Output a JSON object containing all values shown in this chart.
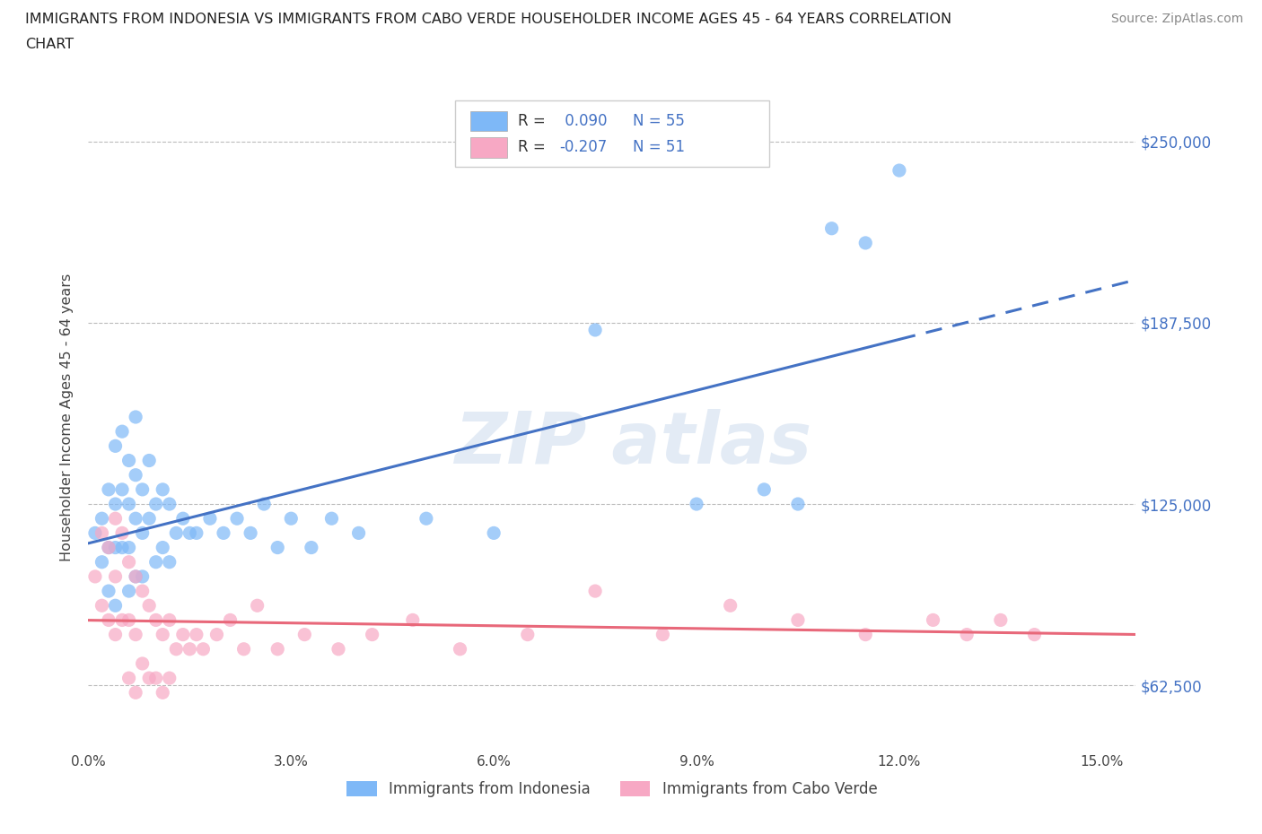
{
  "title_line1": "IMMIGRANTS FROM INDONESIA VS IMMIGRANTS FROM CABO VERDE HOUSEHOLDER INCOME AGES 45 - 64 YEARS CORRELATION",
  "title_line2": "CHART",
  "source": "Source: ZipAtlas.com",
  "ylabel": "Householder Income Ages 45 - 64 years",
  "xlim": [
    0.0,
    0.155
  ],
  "ylim": [
    40000,
    270000
  ],
  "yticks": [
    62500,
    125000,
    187500,
    250000
  ],
  "ytick_labels": [
    "$62,500",
    "$125,000",
    "$187,500",
    "$250,000"
  ],
  "xticks": [
    0.0,
    0.03,
    0.06,
    0.09,
    0.12,
    0.15
  ],
  "xtick_labels": [
    "0.0%",
    "3.0%",
    "6.0%",
    "9.0%",
    "12.0%",
    "15.0%"
  ],
  "r_indonesia": 0.09,
  "n_indonesia": 55,
  "r_cabo_verde": -0.207,
  "n_cabo_verde": 51,
  "color_indonesia": "#7EB8F7",
  "color_cabo_verde": "#F7A8C4",
  "line_color_indonesia": "#4472C4",
  "line_color_cabo_verde": "#E8687A",
  "indonesia_x": [
    0.001,
    0.002,
    0.002,
    0.003,
    0.003,
    0.003,
    0.004,
    0.004,
    0.004,
    0.004,
    0.005,
    0.005,
    0.005,
    0.006,
    0.006,
    0.006,
    0.006,
    0.007,
    0.007,
    0.007,
    0.007,
    0.008,
    0.008,
    0.008,
    0.009,
    0.009,
    0.01,
    0.01,
    0.011,
    0.011,
    0.012,
    0.012,
    0.013,
    0.014,
    0.015,
    0.016,
    0.018,
    0.02,
    0.022,
    0.024,
    0.026,
    0.028,
    0.03,
    0.033,
    0.036,
    0.04,
    0.05,
    0.06,
    0.075,
    0.09,
    0.1,
    0.105,
    0.11,
    0.115,
    0.12
  ],
  "indonesia_y": [
    115000,
    120000,
    105000,
    130000,
    110000,
    95000,
    145000,
    125000,
    110000,
    90000,
    150000,
    130000,
    110000,
    140000,
    125000,
    110000,
    95000,
    155000,
    135000,
    120000,
    100000,
    130000,
    115000,
    100000,
    140000,
    120000,
    125000,
    105000,
    130000,
    110000,
    125000,
    105000,
    115000,
    120000,
    115000,
    115000,
    120000,
    115000,
    120000,
    115000,
    125000,
    110000,
    120000,
    110000,
    120000,
    115000,
    120000,
    115000,
    185000,
    125000,
    130000,
    125000,
    220000,
    215000,
    240000
  ],
  "cabo_verde_x": [
    0.001,
    0.002,
    0.002,
    0.003,
    0.003,
    0.004,
    0.004,
    0.004,
    0.005,
    0.005,
    0.006,
    0.006,
    0.006,
    0.007,
    0.007,
    0.007,
    0.008,
    0.008,
    0.009,
    0.009,
    0.01,
    0.01,
    0.011,
    0.011,
    0.012,
    0.012,
    0.013,
    0.014,
    0.015,
    0.016,
    0.017,
    0.019,
    0.021,
    0.023,
    0.025,
    0.028,
    0.032,
    0.037,
    0.042,
    0.048,
    0.055,
    0.065,
    0.075,
    0.085,
    0.095,
    0.105,
    0.115,
    0.125,
    0.13,
    0.135,
    0.14
  ],
  "cabo_verde_y": [
    100000,
    115000,
    90000,
    110000,
    85000,
    120000,
    100000,
    80000,
    115000,
    85000,
    105000,
    85000,
    65000,
    100000,
    80000,
    60000,
    95000,
    70000,
    90000,
    65000,
    85000,
    65000,
    80000,
    60000,
    85000,
    65000,
    75000,
    80000,
    75000,
    80000,
    75000,
    80000,
    85000,
    75000,
    90000,
    75000,
    80000,
    75000,
    80000,
    85000,
    75000,
    80000,
    95000,
    80000,
    90000,
    85000,
    80000,
    85000,
    80000,
    85000,
    80000
  ]
}
